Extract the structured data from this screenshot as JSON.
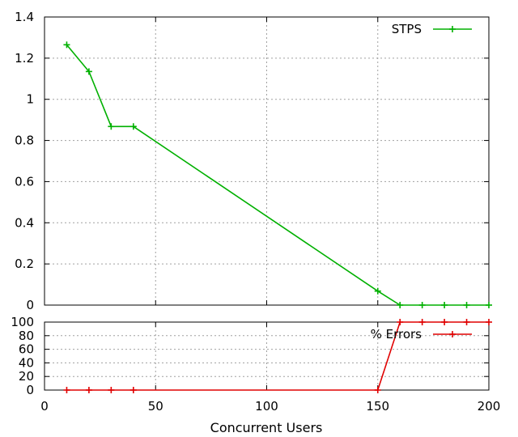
{
  "chart_data": [
    {
      "type": "line",
      "panel": "top",
      "x": [
        10,
        20,
        30,
        40,
        150,
        160,
        170,
        180,
        190,
        200
      ],
      "series": [
        {
          "name": "STPS",
          "color": "#00b000",
          "values": [
            1.265,
            1.135,
            0.868,
            0.868,
            0.068,
            0.0,
            0.0,
            0.0,
            0.0,
            0.0
          ]
        }
      ],
      "xlim": [
        0,
        200
      ],
      "ylim": [
        0,
        1.4
      ],
      "yticks": [
        "0",
        "0.2",
        "0.4",
        "0.6",
        "0.8",
        "1",
        "1.2",
        "1.4"
      ],
      "grid": true,
      "legend_position": "top-right"
    },
    {
      "type": "line",
      "panel": "bottom",
      "x": [
        10,
        20,
        30,
        40,
        150,
        160,
        170,
        180,
        190,
        200
      ],
      "series": [
        {
          "name": "% Errors",
          "color": "#e00000",
          "values": [
            0,
            0,
            0,
            0,
            0,
            100,
            100,
            100,
            100,
            100
          ]
        }
      ],
      "xlim": [
        0,
        200
      ],
      "ylim": [
        0,
        100
      ],
      "xticks": [
        "0",
        "50",
        "100",
        "150",
        "200"
      ],
      "yticks": [
        "0",
        "20",
        "40",
        "60",
        "80",
        "100"
      ],
      "xlabel": "Concurrent Users",
      "grid": true,
      "legend_position": "top-right"
    }
  ]
}
